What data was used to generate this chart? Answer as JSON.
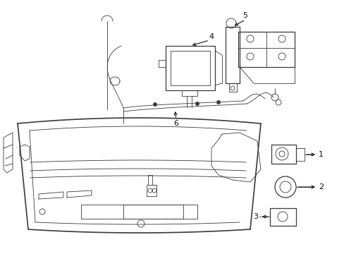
{
  "bg_color": "#ffffff",
  "line_color": "#3a3a3a",
  "label_color": "#111111",
  "fig_width": 4.89,
  "fig_height": 3.6,
  "dpi": 100,
  "lw_thin": 0.6,
  "lw_med": 0.9,
  "lw_thick": 1.2
}
